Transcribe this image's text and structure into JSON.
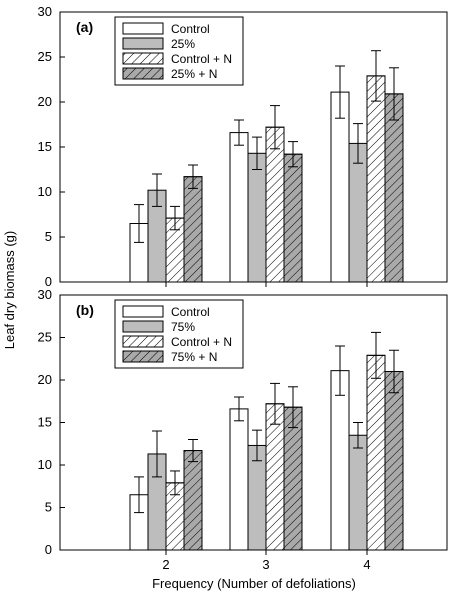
{
  "figure": {
    "ylabel": "Leaf dry biomass (g)",
    "xlabel": "Frequency (Number of defoliations)"
  },
  "chart_data": [
    {
      "type": "bar",
      "panel_label": "(a)",
      "categories": [
        "2",
        "3",
        "4"
      ],
      "ylim": [
        0,
        30
      ],
      "yticks": [
        0,
        5,
        10,
        15,
        20,
        25,
        30
      ],
      "legend_position": "top-left",
      "grid": false,
      "series": [
        {
          "name": "Control",
          "fill": "white",
          "values": [
            6.5,
            16.6,
            21.1
          ],
          "errors": [
            2.1,
            1.4,
            2.9
          ]
        },
        {
          "name": "25%",
          "fill": "gray",
          "values": [
            10.2,
            14.3,
            15.4
          ],
          "errors": [
            1.8,
            1.8,
            2.2
          ]
        },
        {
          "name": "Control + N",
          "fill": "white-hatched",
          "values": [
            7.1,
            17.2,
            22.9
          ],
          "errors": [
            1.3,
            2.4,
            2.8
          ]
        },
        {
          "name": "25% + N",
          "fill": "gray-hatched",
          "values": [
            11.7,
            14.2,
            20.9
          ],
          "errors": [
            1.3,
            1.4,
            2.9
          ]
        }
      ]
    },
    {
      "type": "bar",
      "panel_label": "(b)",
      "categories": [
        "2",
        "3",
        "4"
      ],
      "ylim": [
        0,
        30
      ],
      "yticks": [
        0,
        5,
        10,
        15,
        20,
        25,
        30
      ],
      "legend_position": "top-left",
      "grid": false,
      "series": [
        {
          "name": "Control",
          "fill": "white",
          "values": [
            6.5,
            16.6,
            21.1
          ],
          "errors": [
            2.1,
            1.4,
            2.9
          ]
        },
        {
          "name": "75%",
          "fill": "gray",
          "values": [
            11.3,
            12.3,
            13.5
          ],
          "errors": [
            2.7,
            1.8,
            1.5
          ]
        },
        {
          "name": "Control + N",
          "fill": "white-hatched",
          "values": [
            7.9,
            17.2,
            22.9
          ],
          "errors": [
            1.4,
            2.4,
            2.7
          ]
        },
        {
          "name": "75% + N",
          "fill": "gray-hatched",
          "values": [
            11.7,
            16.8,
            21.0
          ],
          "errors": [
            1.3,
            2.4,
            2.5
          ]
        }
      ]
    }
  ],
  "colors": {
    "gray_fill": "#bdbdbd",
    "hatched_gray_fill": "#a9a9a9",
    "stroke": "#000000",
    "background": "#ffffff"
  }
}
